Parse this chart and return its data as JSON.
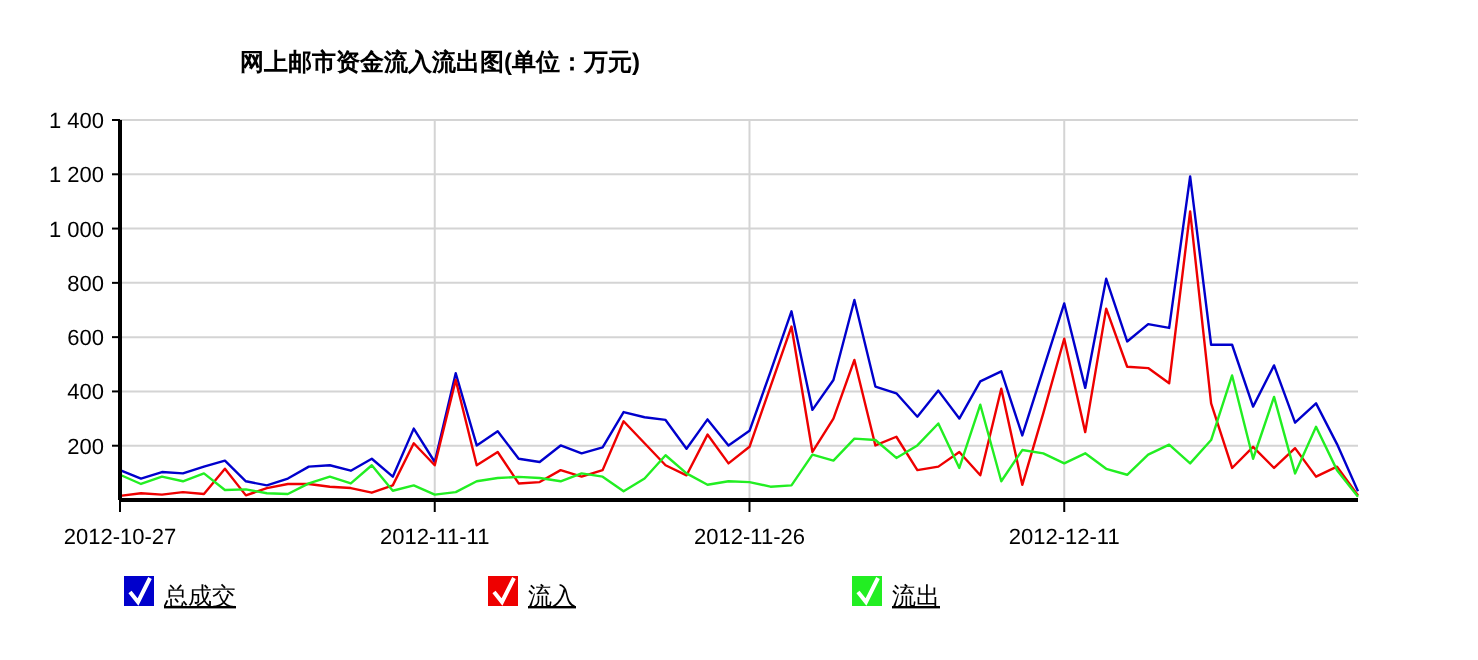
{
  "chart_data": {
    "type": "line",
    "title": "网上邮市资金流入流出图(单位：万元)",
    "x": [
      "2012-10-27",
      "2012-10-28",
      "2012-10-29",
      "2012-10-30",
      "2012-10-31",
      "2012-11-01",
      "2012-11-02",
      "2012-11-03",
      "2012-11-04",
      "2012-11-05",
      "2012-11-06",
      "2012-11-07",
      "2012-11-08",
      "2012-11-09",
      "2012-11-10",
      "2012-11-11",
      "2012-11-12",
      "2012-11-13",
      "2012-11-14",
      "2012-11-15",
      "2012-11-16",
      "2012-11-17",
      "2012-11-18",
      "2012-11-19",
      "2012-11-20",
      "2012-11-21",
      "2012-11-22",
      "2012-11-23",
      "2012-11-24",
      "2012-11-25",
      "2012-11-26",
      "2012-11-27",
      "2012-11-28",
      "2012-11-29",
      "2012-11-30",
      "2012-12-01",
      "2012-12-02",
      "2012-12-03",
      "2012-12-04",
      "2012-12-05",
      "2012-12-06",
      "2012-12-07",
      "2012-12-08",
      "2012-12-09",
      "2012-12-10",
      "2012-12-11",
      "2012-12-12",
      "2012-12-13",
      "2012-12-14",
      "2012-12-15",
      "2012-12-16",
      "2012-12-17",
      "2012-12-18",
      "2012-12-19",
      "2012-12-20",
      "2012-12-21",
      "2012-12-22",
      "2012-12-23",
      "2012-12-24",
      "2012-12-25"
    ],
    "series": [
      {
        "name": "总成交",
        "color": "#0000cc",
        "values": [
          110,
          79,
          103,
          98,
          123,
          145,
          69,
          54,
          79,
          123,
          128,
          108,
          152,
          86,
          263,
          140,
          467,
          201,
          253,
          152,
          140,
          201,
          172,
          194,
          324,
          305,
          295,
          189,
          297,
          201,
          255,
          472,
          695,
          332,
          442,
          737,
          418,
          393,
          307,
          403,
          300,
          437,
          474,
          238,
          481,
          724,
          413,
          815,
          584,
          648,
          634,
          1192,
          572,
          572,
          344,
          496,
          285,
          356,
          206,
          32
        ]
      },
      {
        "name": "流入",
        "color": "#ee0000",
        "values": [
          15,
          25,
          20,
          29,
          22,
          115,
          17,
          44,
          59,
          59,
          49,
          44,
          27,
          54,
          209,
          128,
          442,
          128,
          177,
          61,
          66,
          110,
          86,
          110,
          290,
          209,
          128,
          91,
          241,
          135,
          196,
          418,
          639,
          177,
          300,
          516,
          201,
          233,
          110,
          123,
          177,
          91,
          410,
          56,
          319,
          594,
          250,
          705,
          491,
          486,
          430,
          1063,
          356,
          118,
          196,
          118,
          191,
          86,
          123,
          17
        ]
      },
      {
        "name": "流出",
        "color": "#22ee22",
        "values": [
          93,
          59,
          86,
          69,
          98,
          37,
          39,
          25,
          22,
          61,
          86,
          61,
          128,
          34,
          54,
          20,
          29,
          69,
          81,
          85,
          81,
          69,
          98,
          86,
          32,
          79,
          165,
          98,
          56,
          69,
          66,
          49,
          54,
          167,
          145,
          226,
          221,
          155,
          201,
          282,
          118,
          351,
          69,
          184,
          172,
          135,
          172,
          115,
          93,
          167,
          204,
          135,
          221,
          459,
          152,
          380,
          98,
          270,
          110,
          12
        ]
      }
    ],
    "xlim": [
      "2012-10-27",
      "2012-12-25"
    ],
    "xticks": [
      "2012-10-27",
      "2012-11-11",
      "2012-11-26",
      "2012-12-11"
    ],
    "ylim": [
      0,
      1400
    ],
    "yticks": [
      {
        "value": 200,
        "label": "200"
      },
      {
        "value": 400,
        "label": "400"
      },
      {
        "value": 600,
        "label": "600"
      },
      {
        "value": 800,
        "label": "800"
      },
      {
        "value": 1000,
        "label": "1 000"
      },
      {
        "value": 1200,
        "label": "1 200"
      },
      {
        "value": 1400,
        "label": "1 400"
      }
    ],
    "grid": true,
    "legend": "bottom",
    "marker": "none",
    "line_style": "solid"
  }
}
